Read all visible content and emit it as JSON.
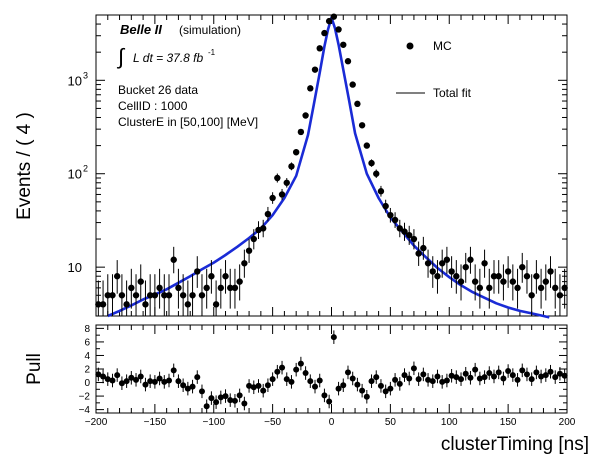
{
  "chart_data": {
    "type": "scatter",
    "top_panel": {
      "yscale": "log",
      "ylabel": "Events / ( 4 )",
      "ylim": [
        3,
        5000
      ],
      "y_ticks": [
        10,
        100,
        1000
      ],
      "y_tick_labels": [
        "10",
        "10",
        "10"
      ],
      "y_tick_exponents": [
        "",
        "2",
        "3"
      ],
      "legend": {
        "placement": "top-right",
        "entries": [
          {
            "label": "MC",
            "marker": "point"
          },
          {
            "label": "Total fit",
            "marker": "line"
          }
        ]
      },
      "annotations": {
        "experiment": "Belle II",
        "sim_tag": "(simulation)",
        "lumi_integral": "∫",
        "lumi_text": "L dt = 37.8 fb",
        "lumi_exponent": "-1",
        "bucket": "Bucket 26 data",
        "cellid": "CellID : 1000",
        "cluster_energy": "ClusterE in [50,100] [MeV]"
      },
      "series": [
        {
          "name": "MC",
          "style": "points-with-errorbars",
          "color": "#000000",
          "x": [
            -198,
            -194,
            -190,
            -186,
            -182,
            -178,
            -174,
            -170,
            -166,
            -162,
            -158,
            -154,
            -150,
            -146,
            -142,
            -138,
            -134,
            -130,
            -126,
            -122,
            -118,
            -114,
            -110,
            -106,
            -102,
            -98,
            -94,
            -90,
            -86,
            -82,
            -78,
            -74,
            -70,
            -66,
            -62,
            -58,
            -54,
            -50,
            -46,
            -42,
            -38,
            -34,
            -30,
            -26,
            -22,
            -18,
            -14,
            -10,
            -6,
            -2,
            2,
            6,
            10,
            14,
            18,
            22,
            26,
            30,
            34,
            38,
            42,
            46,
            50,
            54,
            58,
            62,
            66,
            70,
            74,
            78,
            82,
            86,
            90,
            94,
            98,
            102,
            106,
            110,
            114,
            118,
            122,
            126,
            130,
            134,
            138,
            142,
            146,
            150,
            154,
            158,
            162,
            166,
            170,
            174,
            178,
            182,
            186,
            190,
            194,
            198
          ],
          "y": [
            4,
            4,
            5,
            5,
            8,
            5,
            4,
            6,
            5,
            7,
            4,
            5,
            5,
            6,
            5,
            5,
            12,
            6,
            5,
            4,
            5,
            9,
            5,
            6,
            8,
            4,
            6,
            8,
            6,
            6,
            7,
            11,
            15,
            20,
            25,
            26,
            37,
            55,
            90,
            60,
            80,
            120,
            170,
            280,
            420,
            820,
            1300,
            2200,
            3200,
            4300,
            4800,
            3500,
            2400,
            1600,
            900,
            560,
            330,
            200,
            130,
            100,
            65,
            45,
            36,
            32,
            26,
            24,
            22,
            20,
            14,
            16,
            11,
            9,
            8,
            11,
            12,
            9,
            8,
            7,
            10,
            12,
            7,
            6,
            11,
            6,
            8,
            8,
            7,
            9,
            7,
            6,
            10,
            8,
            5,
            8,
            6,
            7,
            9,
            6,
            5,
            6
          ],
          "err_lo": [
            2,
            2,
            2.2,
            2.2,
            2.8,
            2.2,
            2,
            2.4,
            2.2,
            2.6,
            2,
            2.2,
            2.2,
            2.4,
            2.2,
            2.2,
            3.4,
            2.4,
            2.2,
            2,
            2.2,
            3,
            2.2,
            2.4,
            2.8,
            2,
            2.4,
            2.8,
            2.4,
            2.4,
            2.6,
            3.3,
            3.9,
            4.5,
            5,
            5.1,
            6.1,
            7.4,
            9.5,
            7.7,
            8.9,
            11,
            13,
            16.7,
            20.5,
            28.6,
            36,
            46.9,
            56.6,
            65.6,
            69.3,
            59.2,
            49,
            40,
            30,
            23.7,
            18.2,
            14.1,
            11.4,
            10,
            8.1,
            6.7,
            6,
            5.7,
            5.1,
            4.9,
            4.7,
            4.5,
            3.7,
            4,
            3.3,
            3,
            2.8,
            3.3,
            3.5,
            3,
            2.8,
            2.6,
            3.2,
            3.5,
            2.6,
            2.4,
            3.3,
            2.4,
            2.8,
            2.8,
            2.6,
            3,
            2.6,
            2.4,
            3.2,
            2.8,
            2.2,
            2.8,
            2.4,
            2.6,
            3,
            2.4,
            2.2,
            2.4
          ],
          "err_hi": [
            3.2,
            3.2,
            3.4,
            3.4,
            3.9,
            3.4,
            3.2,
            3.6,
            3.4,
            3.7,
            3.2,
            3.4,
            3.4,
            3.6,
            3.4,
            3.4,
            4.5,
            3.6,
            3.4,
            3.2,
            3.4,
            4.1,
            3.4,
            3.6,
            3.9,
            3.2,
            3.6,
            3.9,
            3.6,
            3.6,
            3.7,
            4.4,
            5,
            5.5,
            6,
            6.1,
            7.1,
            8.4,
            10.5,
            8.7,
            9.9,
            12,
            14,
            17.7,
            21.5,
            29.6,
            37,
            47.9,
            57.6,
            66.6,
            70.3,
            60.2,
            50,
            41,
            31,
            24.7,
            19.2,
            15.1,
            12.4,
            11,
            9.1,
            7.7,
            7,
            6.7,
            6.1,
            5.9,
            5.7,
            5.5,
            4.8,
            5.1,
            4.4,
            4.1,
            3.9,
            4.4,
            4.5,
            4.1,
            3.9,
            3.7,
            4.2,
            4.5,
            3.7,
            3.6,
            4.4,
            3.6,
            3.9,
            3.9,
            3.7,
            4.1,
            3.7,
            3.6,
            4.2,
            3.9,
            3.4,
            3.9,
            3.6,
            3.7,
            4.1,
            3.6,
            3.4,
            3.6
          ]
        },
        {
          "name": "Total fit",
          "style": "line",
          "color": "#1a2bd6",
          "x": [
            -190,
            -180,
            -170,
            -160,
            -150,
            -140,
            -130,
            -120,
            -110,
            -100,
            -90,
            -80,
            -70,
            -60,
            -50,
            -40,
            -30,
            -20,
            -15,
            -10,
            -6,
            -3,
            0,
            3,
            6,
            10,
            15,
            20,
            30,
            40,
            50,
            60,
            70,
            80,
            90,
            100,
            110,
            120,
            130,
            140,
            150,
            160,
            170,
            180,
            185
          ],
          "y": [
            3,
            3.4,
            3.9,
            4.5,
            5.1,
            5.8,
            6.8,
            8,
            9.5,
            11.2,
            13.5,
            16.5,
            20.5,
            26,
            36,
            55,
            95,
            260,
            550,
            1200,
            2300,
            3500,
            4700,
            3600,
            2400,
            1300,
            600,
            270,
            100,
            55,
            34,
            24,
            17,
            12.8,
            9.8,
            7.8,
            6.4,
            5.4,
            4.7,
            4.1,
            3.7,
            3.4,
            3.2,
            3,
            2.9
          ]
        }
      ]
    },
    "bottom_panel": {
      "ylabel": "Pull",
      "ylim": [
        -4.5,
        8.5
      ],
      "y_ticks": [
        -4,
        -2,
        0,
        2,
        4,
        6,
        8
      ],
      "y_tick_labels": [
        "−4",
        "−2",
        "0",
        "2",
        "4",
        "6",
        "8"
      ],
      "series": [
        {
          "name": "Pull",
          "style": "points-with-errorbars",
          "color": "#000000",
          "x": [
            -198,
            -194,
            -190,
            -186,
            -182,
            -178,
            -174,
            -170,
            -166,
            -162,
            -158,
            -154,
            -150,
            -146,
            -142,
            -138,
            -134,
            -130,
            -126,
            -122,
            -118,
            -114,
            -110,
            -106,
            -102,
            -98,
            -94,
            -90,
            -86,
            -82,
            -78,
            -74,
            -70,
            -66,
            -62,
            -58,
            -54,
            -50,
            -46,
            -42,
            -38,
            -34,
            -30,
            -26,
            -22,
            -18,
            -14,
            -10,
            -6,
            -2,
            2,
            6,
            10,
            14,
            18,
            22,
            26,
            30,
            34,
            38,
            42,
            46,
            50,
            54,
            58,
            62,
            66,
            70,
            74,
            78,
            82,
            86,
            90,
            94,
            98,
            102,
            106,
            110,
            114,
            118,
            122,
            126,
            130,
            134,
            138,
            142,
            146,
            150,
            154,
            158,
            162,
            166,
            170,
            174,
            178,
            182,
            186,
            190,
            194,
            198
          ],
          "y": [
            1.2,
            0.9,
            0.5,
            0.3,
            1.1,
            -0.1,
            0.2,
            0.7,
            0.4,
            0.9,
            -0.3,
            0.2,
            0.1,
            0.6,
            0.1,
            0.3,
            1.8,
            0.2,
            -0.4,
            -0.9,
            -0.6,
            0.8,
            -1.3,
            -3.5,
            -2.3,
            -2.9,
            -2.2,
            -2.0,
            -2.6,
            -2.7,
            -1.9,
            -3.1,
            -0.5,
            -0.7,
            -0.5,
            -1.2,
            -0.4,
            0.5,
            1.6,
            2.2,
            0.5,
            0.1,
            1.9,
            2.8,
            1.4,
            0.2,
            -0.6,
            0.3,
            -1.9,
            -2.8,
            6.7,
            -0.9,
            -0.4,
            1.5,
            0.6,
            -0.3,
            -1.2,
            -2.1,
            0.2,
            0.8,
            -0.5,
            -1.3,
            -0.9,
            0.4,
            -0.2,
            1.1,
            0.6,
            2.1,
            0.5,
            1.2,
            0.4,
            0.2,
            0.9,
            0.1,
            0.3,
            1.0,
            0.8,
            0.5,
            1.3,
            0.7,
            1.9,
            0.6,
            0.8,
            1.4,
            0.9,
            1.5,
            0.6,
            1.7,
            1.1,
            0.4,
            1.8,
            1.2,
            0.5,
            1.5,
            0.9,
            1.1,
            1.6,
            0.8,
            1.3,
            1.0
          ]
        }
      ]
    },
    "xlabel": "clusterTiming [ns]",
    "xlim": [
      -200,
      200
    ],
    "x_ticks": [
      -200,
      -150,
      -100,
      -50,
      0,
      50,
      100,
      150,
      200
    ],
    "x_tick_labels": [
      "−200",
      "−150",
      "−100",
      "−50",
      "0",
      "50",
      "100",
      "150",
      "200"
    ]
  }
}
